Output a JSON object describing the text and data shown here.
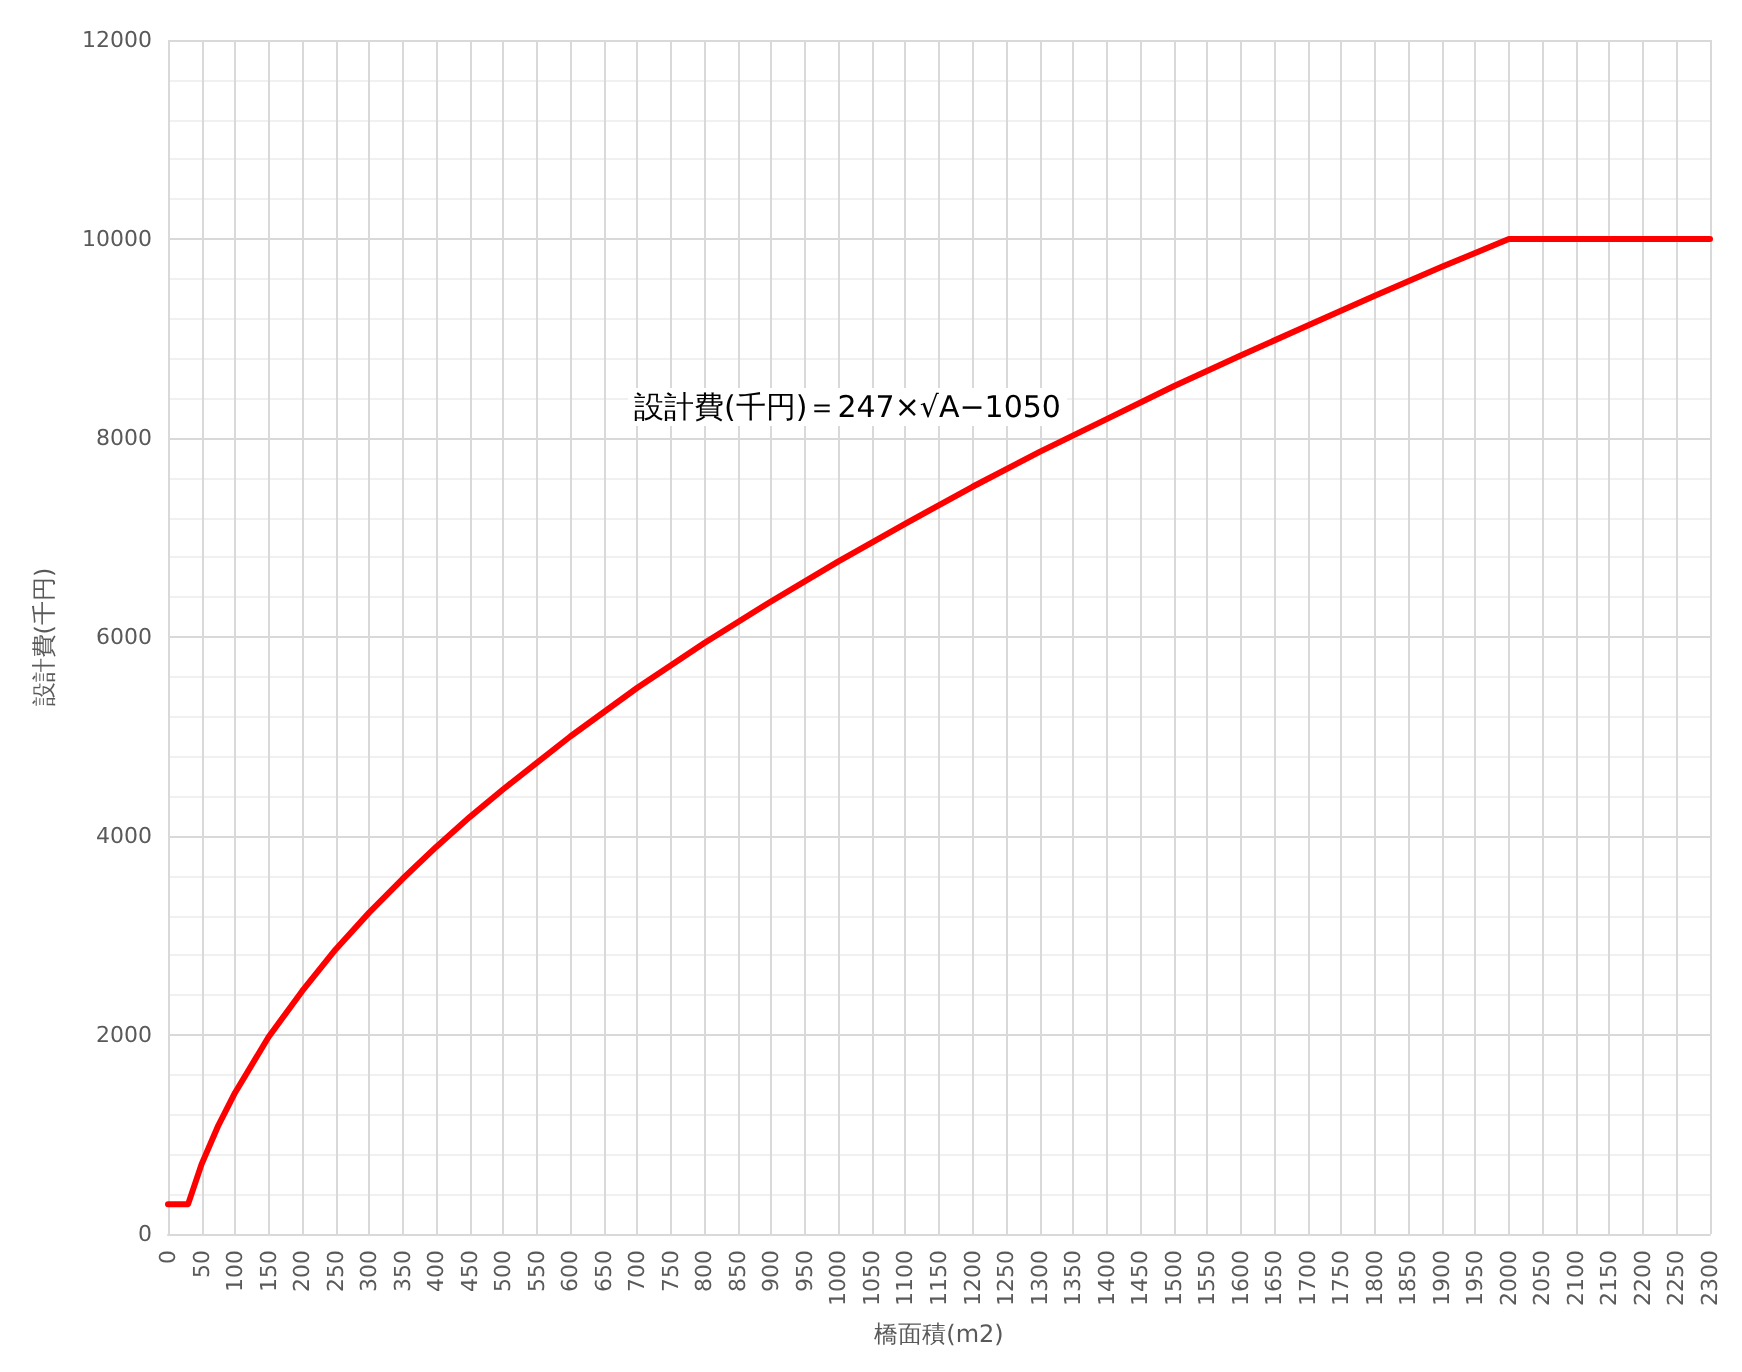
{
  "chart_data": {
    "type": "line",
    "xlabel": "橋面積(m2)",
    "ylabel": "設計費(千円)",
    "annotations": [
      "設計費(千円)＝247×√A−1050"
    ],
    "series": [
      {
        "color": "#ff0000",
        "x": [
          0,
          30,
          50,
          75,
          100,
          150,
          200,
          250,
          300,
          350,
          400,
          450,
          500,
          600,
          700,
          800,
          900,
          1000,
          1100,
          1200,
          1300,
          1400,
          1500,
          1600,
          1700,
          1800,
          1900,
          2000,
          2300
        ],
        "values": [
          300,
          300,
          700,
          1090,
          1420,
          1980,
          2440,
          2860,
          3230,
          3570,
          3890,
          4190,
          4470,
          5000,
          5490,
          5940,
          6360,
          6760,
          7140,
          7510,
          7860,
          8190,
          8520,
          8830,
          9130,
          9430,
          9720,
          10000,
          10000
        ]
      }
    ],
    "xlim": [
      0,
      2300
    ],
    "xticks": [
      0,
      50,
      100,
      150,
      200,
      250,
      300,
      350,
      400,
      450,
      500,
      550,
      600,
      650,
      700,
      750,
      800,
      850,
      900,
      950,
      1000,
      1050,
      1100,
      1150,
      1200,
      1250,
      1300,
      1350,
      1400,
      1450,
      1500,
      1550,
      1600,
      1650,
      1700,
      1750,
      1800,
      1850,
      1900,
      1950,
      2000,
      2050,
      2100,
      2150,
      2200,
      2250,
      2300
    ],
    "ylim": [
      0,
      12000
    ],
    "yticks": [
      0,
      2000,
      4000,
      6000,
      8000,
      10000,
      12000
    ],
    "grid": true,
    "marker": "none",
    "line_style": "solid"
  }
}
